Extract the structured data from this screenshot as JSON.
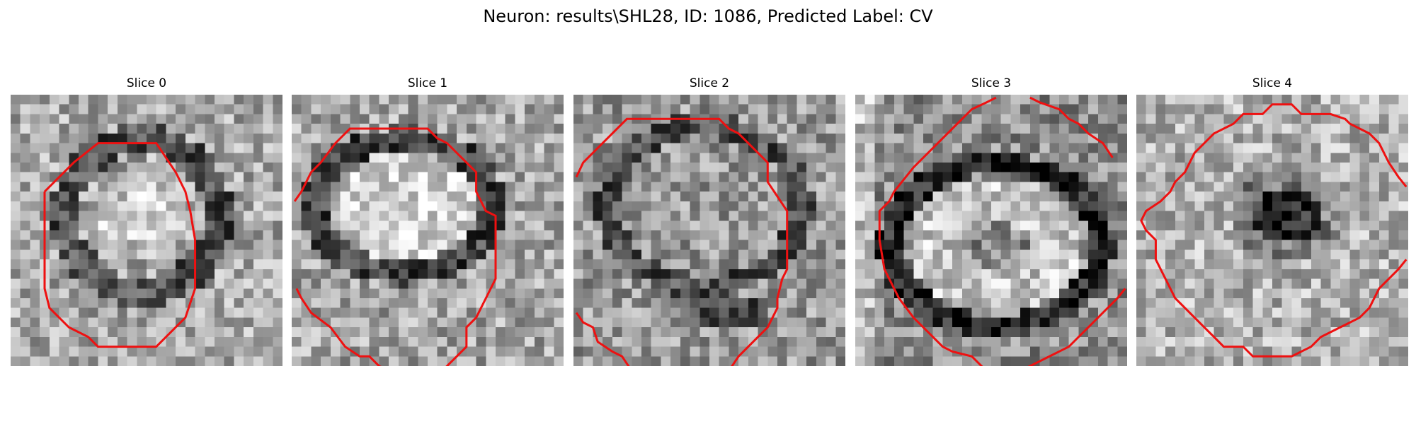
{
  "figure": {
    "title": "Neuron: results\\SHL28, ID: 1086, Predicted Label: CV"
  },
  "slices": [
    {
      "title": "Slice 0",
      "seed": 11,
      "motif": "ring-center"
    },
    {
      "title": "Slice 1",
      "seed": 23,
      "motif": "ellipse"
    },
    {
      "title": "Slice 2",
      "seed": 37,
      "motif": "noisy-band"
    },
    {
      "title": "Slice 3",
      "seed": 41,
      "motif": "donut-offset"
    },
    {
      "title": "Slice 4",
      "seed": 59,
      "motif": "dark-core"
    }
  ],
  "colors": {
    "background": "#ffffff",
    "contour": "#ee1111",
    "text": "#000000"
  }
}
